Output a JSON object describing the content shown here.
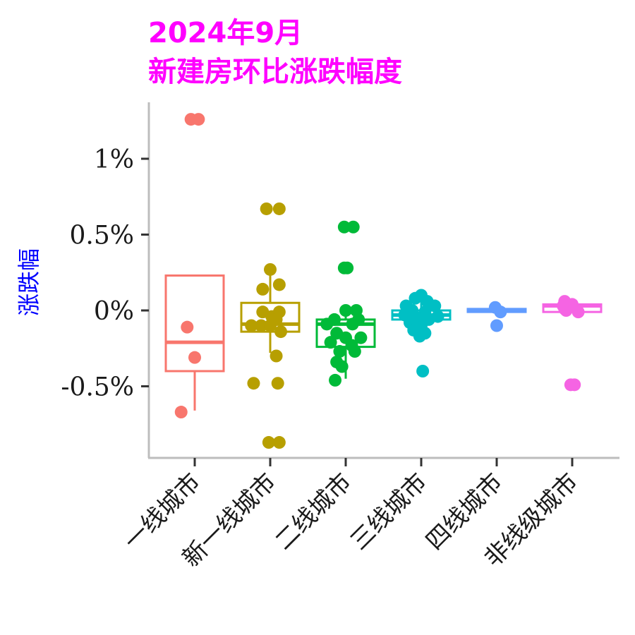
{
  "chart_data": {
    "type": "box",
    "title_line1": "2024年9月",
    "title_line2": "新建房环比涨跌幅度",
    "title_color": "#FF00FF",
    "ylabel": "涨跌幅",
    "ylabel_color": "#0000FF",
    "xlabel": "",
    "ylim": [
      -0.97,
      1.35
    ],
    "y_ticks": [
      {
        "value": 1.0,
        "label": "1%"
      },
      {
        "value": 0.5,
        "label": "0.5%"
      },
      {
        "value": 0.0,
        "label": "0%"
      },
      {
        "value": -0.5,
        "label": "-0.5%"
      }
    ],
    "grid": false,
    "legend": "none",
    "categories": [
      "一线城市",
      "新一线城市",
      "二线城市",
      "三线城市",
      "四线城市",
      "非线级城市"
    ],
    "colors": [
      "#F8766D",
      "#B79F00",
      "#00BA38",
      "#00BFC4",
      "#619CFF",
      "#F564E3"
    ],
    "boxes": [
      {
        "q1": -0.4,
        "median": -0.21,
        "q3": 0.23,
        "whisker_low": -0.66,
        "whisker_high": 0.23
      },
      {
        "q1": -0.14,
        "median": -0.09,
        "q3": 0.05,
        "whisker_low": -0.28,
        "whisker_high": 0.27
      },
      {
        "q1": -0.24,
        "median": -0.09,
        "q3": -0.06,
        "whisker_low": -0.45,
        "whisker_high": -0.01
      },
      {
        "q1": -0.06,
        "median": -0.03,
        "q3": 0.0,
        "whisker_low": -0.17,
        "whisker_high": 0.1
      },
      {
        "q1": -0.01,
        "median": 0.0,
        "q3": 0.01,
        "whisker_low": -0.01,
        "whisker_high": 0.01
      },
      {
        "q1": -0.01,
        "median": 0.03,
        "q3": 0.04,
        "whisker_low": -0.01,
        "whisker_high": 0.04
      }
    ],
    "points": [
      [
        {
          "dx": -0.05,
          "y": 1.26
        },
        {
          "dx": 0.05,
          "y": 1.26
        },
        {
          "dx": -0.1,
          "y": -0.11
        },
        {
          "dx": 0.0,
          "y": -0.31
        },
        {
          "dx": -0.18,
          "y": -0.67
        }
      ],
      [
        {
          "dx": -0.05,
          "y": 0.67
        },
        {
          "dx": 0.12,
          "y": 0.67
        },
        {
          "dx": 0.0,
          "y": 0.27
        },
        {
          "dx": -0.1,
          "y": 0.14
        },
        {
          "dx": 0.12,
          "y": 0.17
        },
        {
          "dx": -0.1,
          "y": -0.01
        },
        {
          "dx": 0.12,
          "y": -0.01
        },
        {
          "dx": 0.02,
          "y": -0.04
        },
        {
          "dx": -0.25,
          "y": -0.1
        },
        {
          "dx": -0.12,
          "y": -0.1
        },
        {
          "dx": 0.0,
          "y": -0.1
        },
        {
          "dx": 0.08,
          "y": -0.06
        },
        {
          "dx": 0.14,
          "y": -0.14
        },
        {
          "dx": 0.08,
          "y": -0.3
        },
        {
          "dx": -0.22,
          "y": -0.48
        },
        {
          "dx": 0.1,
          "y": -0.48
        },
        {
          "dx": -0.02,
          "y": -0.87
        },
        {
          "dx": 0.12,
          "y": -0.87
        }
      ],
      [
        {
          "dx": -0.02,
          "y": 0.55
        },
        {
          "dx": 0.1,
          "y": 0.55
        },
        {
          "dx": -0.02,
          "y": 0.28
        },
        {
          "dx": 0.02,
          "y": 0.28
        },
        {
          "dx": 0.0,
          "y": 0.0
        },
        {
          "dx": 0.14,
          "y": 0.0
        },
        {
          "dx": -0.15,
          "y": -0.06
        },
        {
          "dx": 0.17,
          "y": -0.06
        },
        {
          "dx": -0.25,
          "y": -0.09
        },
        {
          "dx": 0.09,
          "y": -0.09
        },
        {
          "dx": -0.12,
          "y": -0.15
        },
        {
          "dx": 0.0,
          "y": -0.18
        },
        {
          "dx": 0.2,
          "y": -0.18
        },
        {
          "dx": -0.2,
          "y": -0.21
        },
        {
          "dx": 0.08,
          "y": -0.23
        },
        {
          "dx": -0.08,
          "y": -0.27
        },
        {
          "dx": 0.12,
          "y": -0.27
        },
        {
          "dx": -0.12,
          "y": -0.34
        },
        {
          "dx": -0.05,
          "y": -0.37
        },
        {
          "dx": -0.14,
          "y": -0.46
        }
      ],
      [
        {
          "dx": -0.08,
          "y": 0.08
        },
        {
          "dx": 0.0,
          "y": 0.1
        },
        {
          "dx": 0.08,
          "y": 0.06
        },
        {
          "dx": -0.2,
          "y": 0.03
        },
        {
          "dx": 0.18,
          "y": 0.03
        },
        {
          "dx": -0.12,
          "y": 0.0
        },
        {
          "dx": 0.05,
          "y": -0.01
        },
        {
          "dx": -0.22,
          "y": -0.03
        },
        {
          "dx": 0.22,
          "y": -0.04
        },
        {
          "dx": -0.05,
          "y": -0.05
        },
        {
          "dx": 0.1,
          "y": -0.06
        },
        {
          "dx": -0.15,
          "y": -0.08
        },
        {
          "dx": 0.0,
          "y": -0.1
        },
        {
          "dx": -0.1,
          "y": -0.13
        },
        {
          "dx": 0.05,
          "y": -0.15
        },
        {
          "dx": -0.02,
          "y": -0.17
        },
        {
          "dx": 0.02,
          "y": -0.4
        }
      ],
      [
        {
          "dx": -0.02,
          "y": 0.02
        },
        {
          "dx": 0.0,
          "y": -0.1
        },
        {
          "dx": 0.05,
          "y": -0.01
        }
      ],
      [
        {
          "dx": -0.12,
          "y": 0.03
        },
        {
          "dx": -0.1,
          "y": 0.01
        },
        {
          "dx": 0.0,
          "y": 0.04
        },
        {
          "dx": -0.08,
          "y": 0.0
        },
        {
          "dx": 0.08,
          "y": -0.01
        },
        {
          "dx": -0.1,
          "y": 0.06
        },
        {
          "dx": -0.02,
          "y": -0.49
        },
        {
          "dx": 0.03,
          "y": -0.49
        }
      ]
    ]
  }
}
